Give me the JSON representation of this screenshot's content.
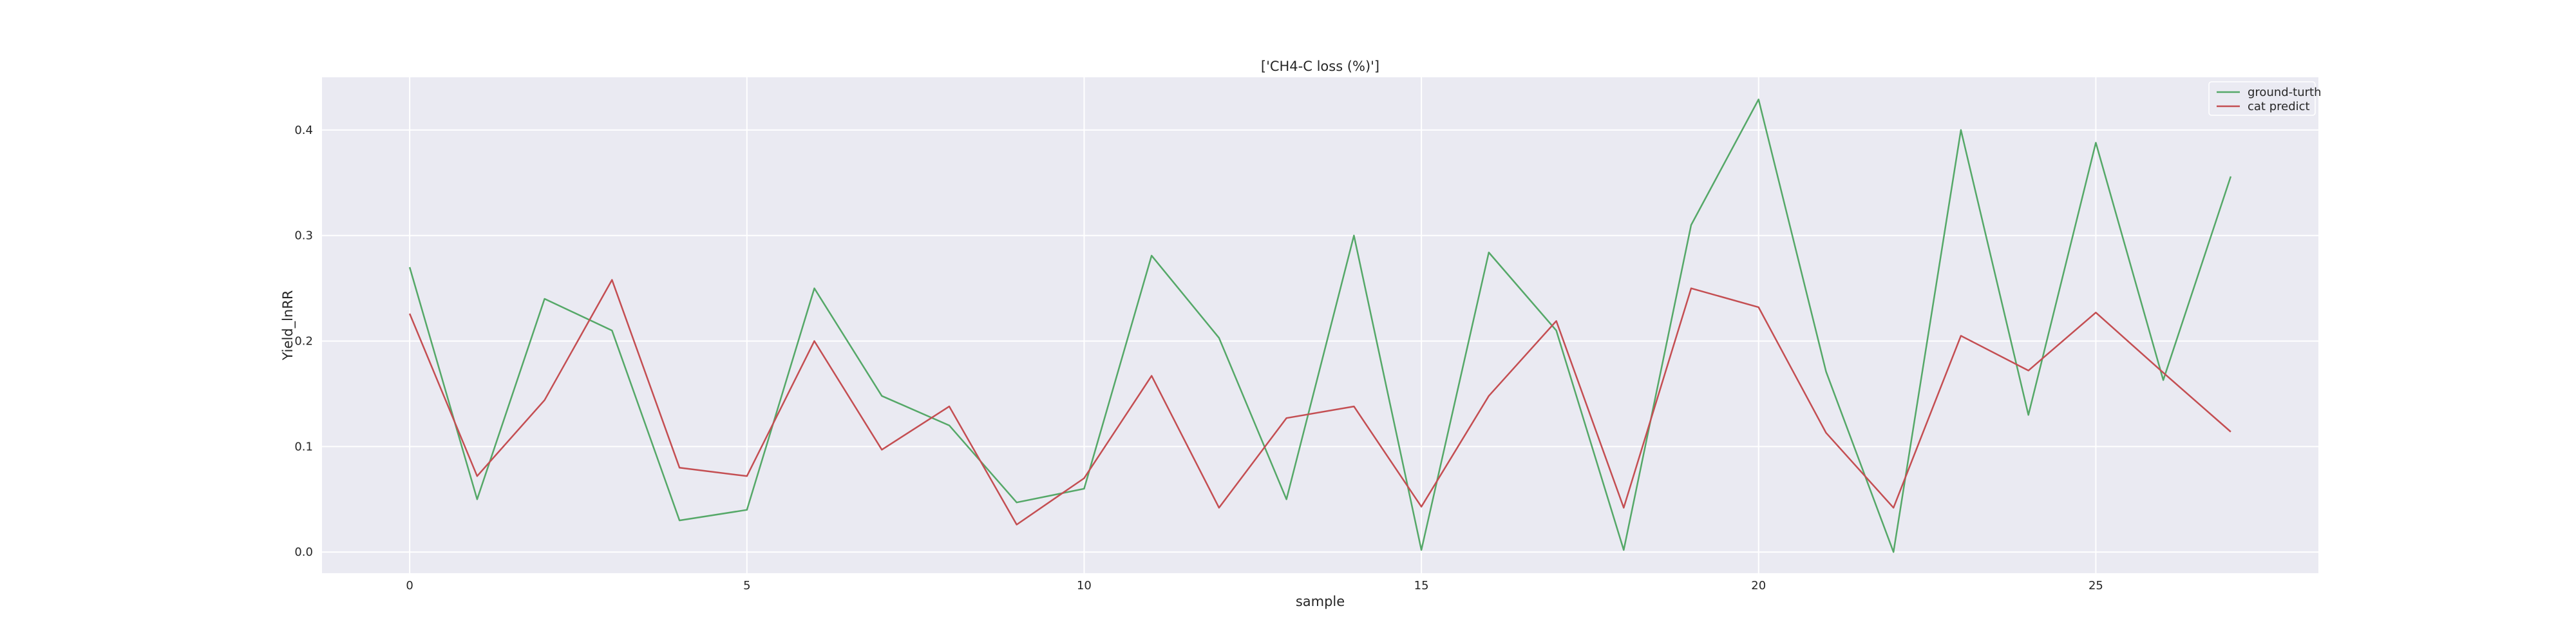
{
  "chart_data": {
    "type": "line",
    "title": "['CH4-C loss (%)']",
    "xlabel": "sample",
    "ylabel": "Yield_lnRR",
    "xlim": [
      -1.3,
      28.3
    ],
    "ylim": [
      -0.02,
      0.45
    ],
    "xticks": [
      0,
      5,
      10,
      15,
      20,
      25
    ],
    "xtick_labels": [
      "0",
      "5",
      "10",
      "15",
      "20",
      "25"
    ],
    "yticks": [
      0.0,
      0.1,
      0.2,
      0.3,
      0.4
    ],
    "ytick_labels": [
      "0.0",
      "0.1",
      "0.2",
      "0.3",
      "0.4"
    ],
    "grid": true,
    "legend_position": "top-right",
    "x": [
      0,
      1,
      2,
      3,
      4,
      5,
      6,
      7,
      8,
      9,
      10,
      11,
      12,
      13,
      14,
      15,
      16,
      17,
      18,
      19,
      20,
      21,
      22,
      23,
      24,
      25,
      26,
      27
    ],
    "series": [
      {
        "name": "ground-turth",
        "color": "#55a868",
        "values": [
          0.27,
          0.05,
          0.24,
          0.21,
          0.03,
          0.04,
          0.25,
          0.148,
          0.12,
          0.047,
          0.06,
          0.281,
          0.203,
          0.05,
          0.3,
          0.002,
          0.284,
          0.21,
          0.002,
          0.31,
          0.429,
          0.171,
          0.0,
          0.4,
          0.13,
          0.388,
          0.163,
          0.356
        ]
      },
      {
        "name": "cat predict",
        "color": "#c44e52",
        "values": [
          0.226,
          0.072,
          0.144,
          0.258,
          0.08,
          0.072,
          0.2,
          0.097,
          0.138,
          0.026,
          0.07,
          0.167,
          0.042,
          0.127,
          0.138,
          0.043,
          0.148,
          0.219,
          0.042,
          0.25,
          0.232,
          0.113,
          0.042,
          0.205,
          0.172,
          0.227,
          0.17,
          0.114
        ]
      }
    ]
  }
}
